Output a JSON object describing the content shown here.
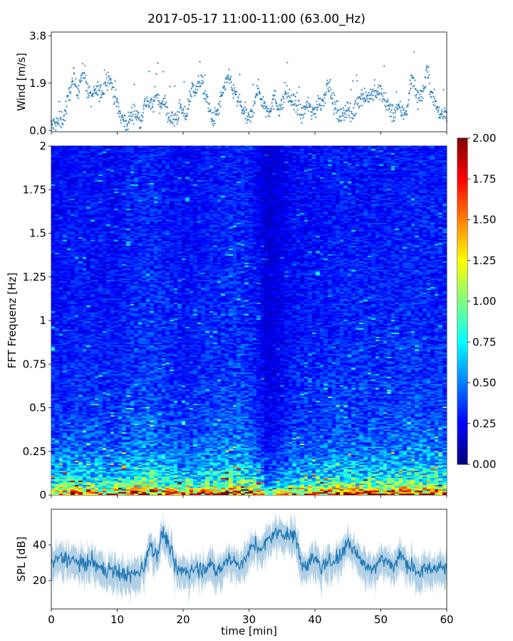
{
  "title": "2017-05-17 11:00-11:00 (63.00_Hz)",
  "chart_data": [
    {
      "type": "scatter",
      "panel": "wind",
      "ylabel": "Wind [m/s]",
      "xlim": [
        0,
        60
      ],
      "ylim": [
        -0.05,
        3.95
      ],
      "yticks": [
        "0.0",
        "1.9",
        "3.8"
      ],
      "color": "#1f77b4",
      "marker": "+",
      "x": [
        0,
        0.5,
        1,
        1.5,
        2,
        2.5,
        3,
        3.5,
        4,
        4.5,
        5,
        5.5,
        6,
        6.5,
        7,
        7.5,
        8,
        8.5,
        9,
        9.5,
        10,
        10.5,
        11,
        11.5,
        12,
        12.5,
        13,
        13.5,
        14,
        14.5,
        15,
        15.5,
        16,
        16.5,
        17,
        17.5,
        18,
        18.5,
        19,
        19.5,
        20,
        20.5,
        21,
        21.5,
        22,
        22.5,
        23,
        23.5,
        24,
        24.5,
        25,
        25.5,
        26,
        26.5,
        27,
        27.5,
        28,
        28.5,
        29,
        29.5,
        30,
        30.5,
        31,
        31.5,
        32,
        32.5,
        33,
        33.5,
        34,
        34.5,
        35,
        35.5,
        36,
        36.5,
        37,
        37.5,
        38,
        38.5,
        39,
        39.5,
        40,
        40.5,
        41,
        41.5,
        42,
        42.5,
        43,
        43.5,
        44,
        44.5,
        45,
        45.5,
        46,
        46.5,
        47,
        47.5,
        48,
        48.5,
        49,
        49.5,
        50,
        50.5,
        51,
        51.5,
        52,
        52.5,
        53,
        53.5,
        54,
        54.5,
        55,
        55.5,
        56,
        56.5,
        57,
        57.5,
        58,
        58.5,
        59,
        59.5,
        60
      ],
      "y": [
        0.2,
        0.25,
        0.3,
        0.4,
        0.6,
        1.2,
        1.8,
        1.9,
        1.6,
        2.1,
        2.4,
        1.6,
        1.3,
        1.5,
        1.6,
        1.5,
        1.7,
        2.2,
        2.0,
        1.5,
        1.0,
        0.6,
        0.4,
        0.3,
        0.5,
        0.8,
        0.6,
        0.4,
        0.9,
        1.2,
        1.0,
        1.1,
        1.5,
        1.0,
        1.3,
        0.8,
        0.5,
        0.4,
        0.5,
        0.9,
        0.7,
        0.6,
        1.3,
        1.8,
        1.6,
        2.0,
        1.8,
        1.3,
        0.8,
        0.4,
        0.6,
        1.0,
        1.5,
        1.8,
        2.3,
        1.6,
        1.4,
        1.1,
        0.9,
        0.6,
        0.4,
        0.7,
        1.5,
        1.6,
        1.2,
        0.9,
        0.8,
        1.1,
        1.3,
        0.9,
        1.0,
        1.6,
        1.3,
        1.2,
        1.0,
        0.8,
        0.6,
        0.9,
        1.0,
        0.7,
        0.8,
        1.2,
        1.1,
        1.4,
        2.0,
        1.4,
        1.0,
        0.7,
        0.6,
        0.8,
        0.9,
        0.5,
        0.8,
        1.2,
        1.4,
        1.4,
        1.3,
        1.5,
        1.4,
        1.5,
        1.6,
        1.2,
        1.0,
        0.8,
        0.6,
        1.0,
        0.8,
        0.7,
        0.9,
        1.9,
        2.1,
        1.3,
        1.4,
        1.6,
        2.5,
        1.7,
        1.4,
        0.9,
        0.6,
        0.7,
        0.8
      ]
    },
    {
      "type": "heatmap",
      "panel": "spectrogram",
      "ylabel": "FFT Frequenz [Hz]",
      "xlim": [
        0,
        60
      ],
      "ylim": [
        0,
        2
      ],
      "yticks": [
        "0",
        "0.25",
        "0.5",
        "0.75",
        "1",
        "1.25",
        "1.5",
        "1.75",
        "2"
      ],
      "colormap": "jet",
      "clim": [
        0,
        2
      ],
      "colorbar_ticks": [
        "0.00",
        "0.25",
        "0.50",
        "0.75",
        "1.00",
        "1.25",
        "1.50",
        "1.75",
        "2.00"
      ],
      "freq_profile": {
        "freq": [
          0,
          0.05,
          0.1,
          0.2,
          0.3,
          0.4,
          0.5,
          0.75,
          1.0,
          1.5,
          2.0
        ],
        "value": [
          1.7,
          1.0,
          0.75,
          0.55,
          0.45,
          0.4,
          0.37,
          0.33,
          0.31,
          0.29,
          0.28
        ]
      },
      "time_profile": {
        "time": [
          0,
          5,
          10,
          12,
          15,
          18,
          20,
          25,
          28,
          30,
          33,
          35,
          37,
          40,
          45,
          50,
          55,
          60
        ],
        "factor": [
          0.9,
          0.95,
          0.9,
          1.05,
          1.1,
          1.0,
          0.9,
          1.0,
          1.1,
          1.05,
          0.55,
          0.7,
          0.9,
          0.95,
          1.0,
          1.0,
          1.05,
          1.0
        ]
      }
    },
    {
      "type": "line",
      "panel": "spl",
      "ylabel": "SPL [dB]",
      "xlabel": "time [min]",
      "xlim": [
        0,
        60
      ],
      "ylim": [
        4,
        60
      ],
      "yticks": [
        "20",
        "40"
      ],
      "xticks": [
        "0",
        "10",
        "20",
        "30",
        "40",
        "50",
        "60"
      ],
      "color": "#1f77b4",
      "x": [
        0,
        1,
        2,
        3,
        4,
        5,
        6,
        7,
        8,
        9,
        10,
        11,
        12,
        13,
        14,
        15,
        16,
        17,
        18,
        19,
        20,
        21,
        22,
        23,
        24,
        25,
        26,
        27,
        28,
        29,
        30,
        31,
        32,
        33,
        34,
        35,
        36,
        37,
        38,
        39,
        40,
        41,
        42,
        43,
        44,
        45,
        46,
        47,
        48,
        49,
        50,
        51,
        52,
        53,
        54,
        55,
        56,
        57,
        58,
        59,
        60
      ],
      "y": [
        30,
        32,
        33,
        31,
        30,
        29,
        31,
        28,
        26,
        27,
        25,
        24,
        23,
        25,
        27,
        40,
        35,
        47,
        38,
        25,
        26,
        25,
        27,
        26,
        30,
        25,
        28,
        33,
        29,
        30,
        36,
        40,
        37,
        44,
        46,
        48,
        44,
        47,
        28,
        30,
        33,
        27,
        30,
        32,
        34,
        42,
        36,
        32,
        27,
        28,
        32,
        30,
        28,
        35,
        29,
        27,
        25,
        26,
        27,
        28,
        26
      ]
    }
  ]
}
